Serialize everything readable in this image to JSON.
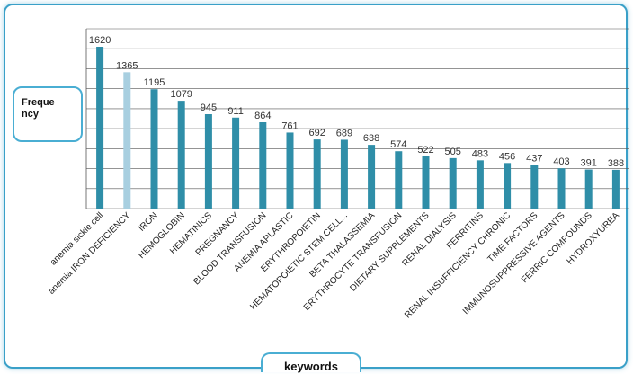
{
  "chart_data": {
    "type": "bar",
    "title": "",
    "xlabel": "keywords",
    "ylabel": "Frequency",
    "ylim": [
      0,
      1800
    ],
    "grid": true,
    "categories": [
      "anemia sickle cell",
      "anemia IRON DEFICIENCY",
      "IRON",
      "HEMOGLOBIN",
      "HEMATINICS",
      "PREGNANCY",
      "BLOOD TRANSFUSION",
      "ANEMIA APLASTIC",
      "ERYTHROPOIETIN",
      "HEMATOPOIETIC STEM CELL...",
      "BETA THALASSEMIA",
      "ERYTHROCYTE TRANSFUSION",
      "DIETARY SUPPLEMENTS",
      "RENAL DIALYSIS",
      "FERRITINS",
      "RENAL INSUFFICIENCY CHRONIC",
      "TIME FACTORS",
      "IMMUNOSUPPRESSIVE AGENTS",
      "FERRIC COMPOUNDS",
      "HYDROXYUREA"
    ],
    "values": [
      1620,
      1365,
      1195,
      1079,
      945,
      911,
      864,
      761,
      692,
      689,
      638,
      574,
      522,
      505,
      483,
      456,
      437,
      403,
      391,
      388
    ],
    "colors": {
      "bar": "#2f8ea8",
      "highlight": "#a8cfe0",
      "grid": "#555555",
      "frame": "#3aa0c8"
    },
    "highlight_index": 1
  }
}
